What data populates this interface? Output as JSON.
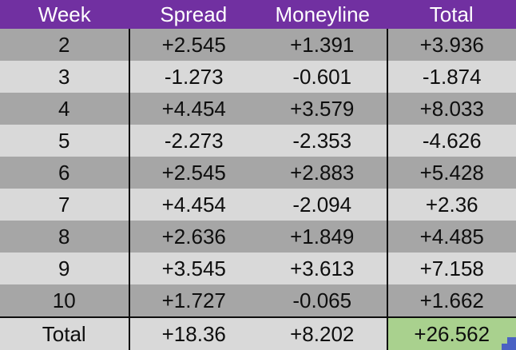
{
  "table": {
    "columns": [
      "Week",
      "Spread",
      "Moneyline",
      "Total"
    ],
    "rows": [
      {
        "week": "2",
        "spread": "+2.545",
        "moneyline": "+1.391",
        "total": "+3.936"
      },
      {
        "week": "3",
        "spread": "-1.273",
        "moneyline": "-0.601",
        "total": "-1.874"
      },
      {
        "week": "4",
        "spread": "+4.454",
        "moneyline": "+3.579",
        "total": "+8.033"
      },
      {
        "week": "5",
        "spread": "-2.273",
        "moneyline": "-2.353",
        "total": "-4.626"
      },
      {
        "week": "6",
        "spread": "+2.545",
        "moneyline": "+2.883",
        "total": "+5.428"
      },
      {
        "week": "7",
        "spread": "+4.454",
        "moneyline": "-2.094",
        "total": "+2.36"
      },
      {
        "week": "8",
        "spread": "+2.636",
        "moneyline": "+1.849",
        "total": "+4.485"
      },
      {
        "week": "9",
        "spread": "+3.545",
        "moneyline": "+3.613",
        "total": "+7.158"
      },
      {
        "week": "10",
        "spread": "+1.727",
        "moneyline": "-0.065",
        "total": "+1.662"
      }
    ],
    "total_row": {
      "label": "Total",
      "spread": "+18.36",
      "moneyline": "+8.202",
      "total": "+26.562"
    }
  },
  "chart_data": {
    "type": "table",
    "title": "",
    "columns": [
      "Week",
      "Spread",
      "Moneyline",
      "Total"
    ],
    "x": [
      2,
      3,
      4,
      5,
      6,
      7,
      8,
      9,
      10
    ],
    "series": [
      {
        "name": "Spread",
        "values": [
          2.545,
          -1.273,
          4.454,
          -2.273,
          2.545,
          4.454,
          2.636,
          3.545,
          1.727
        ]
      },
      {
        "name": "Moneyline",
        "values": [
          1.391,
          -0.601,
          3.579,
          -2.353,
          2.883,
          -2.094,
          1.849,
          3.613,
          -0.065
        ]
      },
      {
        "name": "Total",
        "values": [
          3.936,
          -1.874,
          8.033,
          -4.626,
          5.428,
          2.36,
          4.485,
          7.158,
          1.662
        ]
      }
    ],
    "totals": {
      "Spread": 18.36,
      "Moneyline": 8.202,
      "Total": 26.562
    }
  },
  "colors": {
    "purple": "#7130A1",
    "dark_gray": "#A6A6A6",
    "light_gray": "#D9D9D9",
    "green": "#A9D18E",
    "blue": "#4A62C3"
  }
}
